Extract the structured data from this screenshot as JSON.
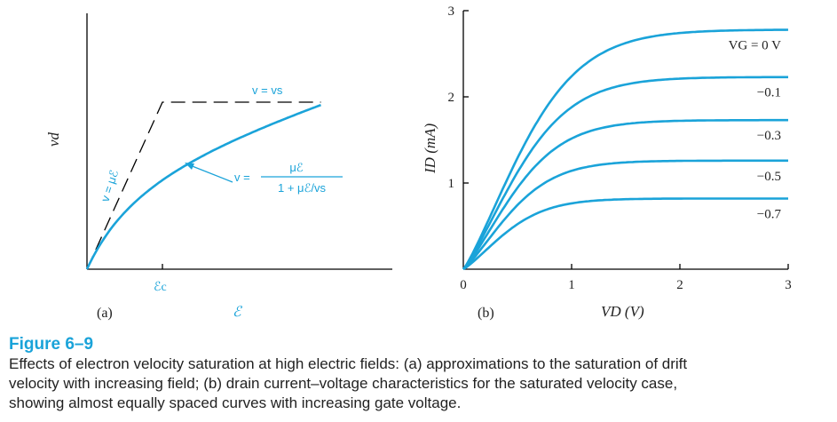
{
  "figure": {
    "caption_title": "Figure 6–9",
    "caption_lines": [
      "Effects of electron velocity saturation at high electric fields: (a) approximations to the saturation of drift",
      "velocity with increasing field; (b) drain current–voltage characteristics for the saturated velocity case,",
      "showing almost equally spaced curves with increasing gate voltage."
    ]
  },
  "colors": {
    "curve": "#1aa3d9",
    "axis": "#000000",
    "text": "#222222"
  },
  "chart_data": [
    {
      "panel": "(a)",
      "type": "line",
      "xlabel": "ℰ",
      "ylabel": "vd",
      "x_tick_label": "ℰc",
      "annotations": {
        "saturation_label": "v = vs",
        "low_field_label": "v = μℰ",
        "model_label_lhs": "v =",
        "model_numerator": "μℰ",
        "model_denominator": "1 + μℰ/vs"
      },
      "series": [
        {
          "type": "piecewise-dashed",
          "points": [
            [
              0,
              0
            ],
            [
              1,
              1
            ],
            [
              3.1,
              1
            ]
          ]
        },
        {
          "type": "model",
          "formula": "x/(1+x)",
          "xlim": [
            0,
            3.1
          ]
        }
      ],
      "ylim": [
        0,
        1.2
      ]
    },
    {
      "panel": "(b)",
      "type": "line",
      "xlabel": "VD (V)",
      "ylabel": "ID (mA)",
      "xlim": [
        0,
        3
      ],
      "ylim": [
        0,
        3
      ],
      "x_ticks": [
        0,
        1,
        2,
        3
      ],
      "y_ticks": [
        0,
        1,
        2,
        3
      ],
      "legend_title": "VG = 0 V",
      "series": [
        {
          "name": "VG = 0 V",
          "saturation": 2.78
        },
        {
          "name": "−0.1",
          "saturation": 2.23
        },
        {
          "name": "−0.3",
          "saturation": 1.73
        },
        {
          "name": "−0.5",
          "saturation": 1.26
        },
        {
          "name": "−0.7",
          "saturation": 0.82
        }
      ]
    }
  ]
}
